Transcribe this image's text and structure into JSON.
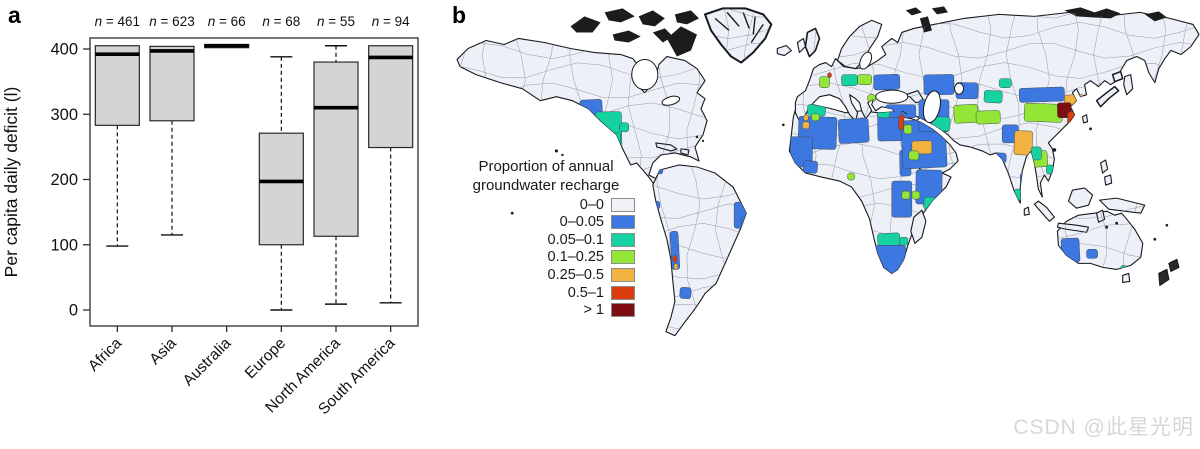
{
  "panel_a": {
    "label": "a"
  },
  "panel_b": {
    "label": "b",
    "legend": {
      "title_line1": "Proportion of annual",
      "title_line2": "groundwater recharge",
      "items": [
        {
          "label": "0–0",
          "color": "#f1f2f7"
        },
        {
          "label": "0–0.05",
          "color": "#3d78e0"
        },
        {
          "label": "0.05–0.1",
          "color": "#16d2a0"
        },
        {
          "label": "0.1–0.25",
          "color": "#94e636"
        },
        {
          "label": "0.25–0.5",
          "color": "#f1b23f"
        },
        {
          "label": "0.5–1",
          "color": "#da3e10"
        },
        {
          "label": "> 1",
          "color": "#7c0e12"
        }
      ]
    },
    "map": {
      "land_fill": "#edf0f7",
      "coast_color": "#16191d",
      "basin_line_color": "#7d848e",
      "regions": [
        [
          128,
          95,
          22,
          32,
          1
        ],
        [
          143,
          107,
          26,
          36,
          2
        ],
        [
          167,
          118,
          9,
          9,
          2
        ],
        [
          147,
          130,
          16,
          16,
          1
        ],
        [
          158,
          128,
          10,
          16,
          2
        ],
        [
          281,
          197,
          12,
          26,
          1
        ],
        [
          288,
          212,
          7,
          12,
          1
        ],
        [
          218,
          226,
          8,
          38,
          1
        ],
        [
          220,
          250,
          4,
          7,
          5
        ],
        [
          221,
          258,
          4,
          6,
          4
        ],
        [
          227,
          282,
          11,
          11,
          1
        ],
        [
          205,
          163,
          5,
          6,
          1
        ],
        [
          203,
          196,
          4,
          8,
          1
        ],
        [
          345,
          112,
          38,
          32,
          1
        ],
        [
          385,
          114,
          30,
          24,
          1
        ],
        [
          424,
          106,
          26,
          30,
          1
        ],
        [
          337,
          132,
          22,
          30,
          1
        ],
        [
          350,
          156,
          14,
          12,
          1
        ],
        [
          336,
          160,
          9,
          9,
          3
        ],
        [
          340,
          170,
          7,
          7,
          2
        ],
        [
          349,
          117,
          7,
          7,
          4
        ],
        [
          394,
          168,
          7,
          7,
          3
        ],
        [
          446,
          145,
          11,
          26,
          1
        ],
        [
          462,
          165,
          26,
          34,
          1
        ],
        [
          470,
          192,
          12,
          12,
          2
        ],
        [
          458,
          186,
          8,
          8,
          3
        ],
        [
          438,
          176,
          20,
          36,
          1
        ],
        [
          448,
          186,
          8,
          8,
          3
        ],
        [
          424,
          228,
          22,
          13,
          2
        ],
        [
          420,
          240,
          32,
          28,
          1
        ],
        [
          446,
          232,
          8,
          8,
          2
        ],
        [
          354,
          100,
          18,
          11,
          2
        ],
        [
          358,
          109,
          8,
          7,
          3
        ],
        [
          350,
          110,
          5,
          6,
          4
        ],
        [
          366,
          72,
          10,
          11,
          3
        ],
        [
          374,
          68,
          4,
          5,
          5
        ],
        [
          388,
          70,
          16,
          11,
          2
        ],
        [
          404,
          70,
          14,
          10,
          3
        ],
        [
          414,
          90,
          8,
          7,
          3
        ],
        [
          420,
          70,
          26,
          15,
          1
        ],
        [
          432,
          100,
          30,
          13,
          1
        ],
        [
          424,
          104,
          12,
          9,
          2
        ],
        [
          448,
          115,
          44,
          48,
          1
        ],
        [
          458,
          136,
          20,
          13,
          4
        ],
        [
          455,
          146,
          10,
          9,
          3
        ],
        [
          445,
          110,
          5,
          15,
          5
        ],
        [
          450,
          120,
          8,
          9,
          3
        ],
        [
          465,
          95,
          30,
          32,
          1
        ],
        [
          478,
          112,
          18,
          14,
          2
        ],
        [
          500,
          100,
          24,
          18,
          3
        ],
        [
          470,
          70,
          30,
          20,
          1
        ],
        [
          502,
          78,
          22,
          16,
          1
        ],
        [
          530,
          86,
          18,
          12,
          2
        ],
        [
          522,
          106,
          24,
          13,
          3
        ],
        [
          548,
          120,
          16,
          18,
          1
        ],
        [
          560,
          126,
          18,
          24,
          4
        ],
        [
          575,
          146,
          18,
          16,
          3
        ],
        [
          566,
          168,
          10,
          16,
          1
        ],
        [
          560,
          184,
          9,
          11,
          2
        ],
        [
          540,
          148,
          12,
          10,
          1
        ],
        [
          565,
          83,
          45,
          14,
          1
        ],
        [
          545,
          74,
          12,
          9,
          2
        ],
        [
          570,
          99,
          38,
          18,
          3
        ],
        [
          610,
          90,
          19,
          13,
          4
        ],
        [
          603,
          98,
          14,
          15,
          6
        ],
        [
          613,
          107,
          8,
          16,
          5
        ],
        [
          612,
          126,
          7,
          7,
          4
        ],
        [
          608,
          132,
          7,
          7,
          2
        ],
        [
          577,
          142,
          10,
          13,
          2
        ],
        [
          592,
          160,
          7,
          9,
          2
        ],
        [
          607,
          233,
          18,
          24,
          1
        ],
        [
          632,
          244,
          11,
          9,
          1
        ],
        [
          666,
          260,
          6,
          5,
          2
        ]
      ]
    }
  },
  "watermark": {
    "text": "CSDN @此星光明",
    "color": "#d7d7d7"
  },
  "chart_data": [
    {
      "type": "boxplot",
      "title": "",
      "xlabel": "",
      "ylabel": "Per capita daily deficit (l)",
      "ylim": [
        0,
        400
      ],
      "y_ticks": [
        0,
        100,
        200,
        300,
        400
      ],
      "grid": false,
      "n_label_prefix": "n = ",
      "categories": [
        "Africa",
        "Asia",
        "Australia",
        "Europe",
        "North America",
        "South America"
      ],
      "series": [
        {
          "label": "Africa",
          "n": 461,
          "whisker_low": 98,
          "q1": 283,
          "median": 392,
          "q3": 405,
          "whisker_high": null
        },
        {
          "label": "Asia",
          "n": 623,
          "whisker_low": 115,
          "q1": 290,
          "median": 397,
          "q3": 404,
          "whisker_high": null
        },
        {
          "label": "Australia",
          "n": 66,
          "whisker_low": null,
          "q1": 402,
          "median": 405,
          "q3": 407,
          "whisker_high": null
        },
        {
          "label": "Europe",
          "n": 68,
          "whisker_low": 0,
          "q1": 100,
          "median": 197,
          "q3": 271,
          "whisker_high": 388
        },
        {
          "label": "North America",
          "n": 55,
          "whisker_low": 9,
          "q1": 113,
          "median": 310,
          "q3": 380,
          "whisker_high": 405
        },
        {
          "label": "South America",
          "n": 94,
          "whisker_low": 11,
          "q1": 249,
          "median": 387,
          "q3": 405,
          "whisker_high": null
        }
      ],
      "box_fill": "#d4d4d4"
    },
    {
      "type": "choropleth-map",
      "title": "Proportion of annual groundwater recharge",
      "legend_categories": [
        "0–0",
        "0–0.05",
        "0.05–0.1",
        "0.1–0.25",
        "0.25–0.5",
        "0.5–1",
        "> 1"
      ],
      "legend_colors": [
        "#f1f2f7",
        "#3d78e0",
        "#16d2a0",
        "#94e636",
        "#f1b23f",
        "#da3e10",
        "#7c0e12"
      ],
      "legend_position": "left-middle",
      "note": "world river-basin map; most basins 0–0 (near-white); colored basins concentrated in SW USA, Mexico, North Africa, Horn of Africa, southern Africa, Middle East, Central/South Asia, northern China, southern Europe, Australia"
    }
  ]
}
